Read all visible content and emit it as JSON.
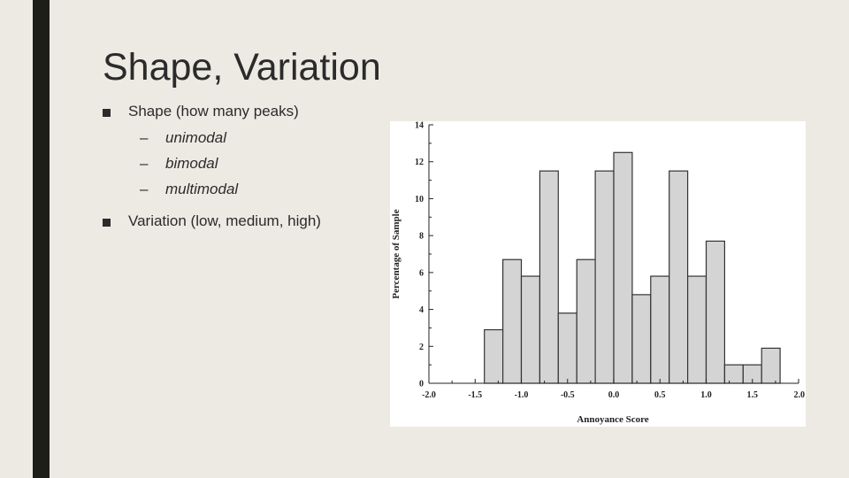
{
  "slide": {
    "title": "Shape, Variation",
    "bullets": [
      {
        "text": "Shape (how many peaks)",
        "subitems": [
          "unimodal",
          "bimodal",
          "multimodal"
        ]
      },
      {
        "text": "Variation (low, medium, high)",
        "subitems": []
      }
    ],
    "sub_dash": "–"
  },
  "chart_data": {
    "type": "bar",
    "subtype": "histogram",
    "xlabel": "Annoyance Score",
    "ylabel": "Percentage of Sample",
    "xlim": [
      -2.0,
      2.0
    ],
    "ylim": [
      0,
      14
    ],
    "xticks": [
      "-2.0",
      "-1.5",
      "-1.0",
      "-0.5",
      "0.0",
      "0.5",
      "1.0",
      "1.5",
      "2.0"
    ],
    "yticks": [
      "0",
      "2",
      "4",
      "6",
      "8",
      "10",
      "12",
      "14"
    ],
    "bin_width": 0.2,
    "bins": [
      {
        "x0": -1.4,
        "value": 2.9
      },
      {
        "x0": -1.2,
        "value": 6.7
      },
      {
        "x0": -1.0,
        "value": 5.8
      },
      {
        "x0": -0.8,
        "value": 11.5
      },
      {
        "x0": -0.6,
        "value": 3.8
      },
      {
        "x0": -0.4,
        "value": 6.7
      },
      {
        "x0": -0.2,
        "value": 11.5
      },
      {
        "x0": 0.0,
        "value": 12.5
      },
      {
        "x0": 0.2,
        "value": 4.8
      },
      {
        "x0": 0.4,
        "value": 5.8
      },
      {
        "x0": 0.6,
        "value": 11.5
      },
      {
        "x0": 0.8,
        "value": 5.8
      },
      {
        "x0": 1.0,
        "value": 7.7
      },
      {
        "x0": 1.2,
        "value": 1.0
      },
      {
        "x0": 1.4,
        "value": 1.0
      },
      {
        "x0": 1.6,
        "value": 1.9
      }
    ],
    "bar_fill": "#d4d4d4",
    "bar_stroke": "#333333",
    "grid": false
  }
}
